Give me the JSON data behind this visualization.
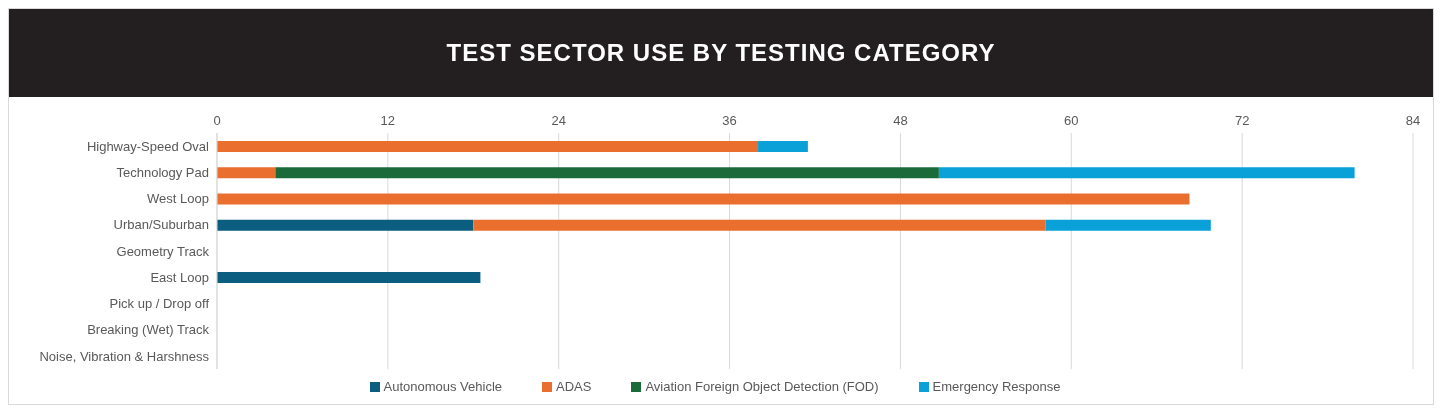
{
  "chart_data": {
    "type": "bar",
    "orientation": "horizontal",
    "stacked": true,
    "title": "TEST SECTOR USE BY TESTING CATEGORY",
    "categories": [
      "Highway-Speed Oval",
      "Technology Pad",
      "West Loop",
      "Urban/Suburban",
      "Geometry Track",
      "East Loop",
      "Pick up / Drop off",
      "Breaking (Wet) Track",
      "Noise, Vibration & Harshness"
    ],
    "series": [
      {
        "name": "Autonomous Vehicle",
        "color": "#0b5e80",
        "values": [
          null,
          null,
          null,
          18,
          null,
          18.5,
          null,
          null,
          null
        ]
      },
      {
        "name": "ADAS",
        "color": "#ea6f2f",
        "values": [
          38,
          4.1,
          68.3,
          40.2,
          null,
          null,
          null,
          null,
          null
        ]
      },
      {
        "name": "Aviation Foreign Object Detection (FOD)",
        "color": "#1b6b3a",
        "values": [
          null,
          46.6,
          null,
          null,
          null,
          null,
          null,
          null,
          null
        ]
      },
      {
        "name": "Emergency Response",
        "color": "#0aa0d8",
        "values": [
          3.5,
          29.2,
          null,
          11.6,
          null,
          null,
          null,
          null,
          null
        ]
      }
    ],
    "xlim": [
      0,
      84
    ],
    "xticks": [
      0,
      12,
      24,
      36,
      48,
      60,
      72,
      84
    ],
    "grid": "x",
    "legend": "bottom"
  }
}
